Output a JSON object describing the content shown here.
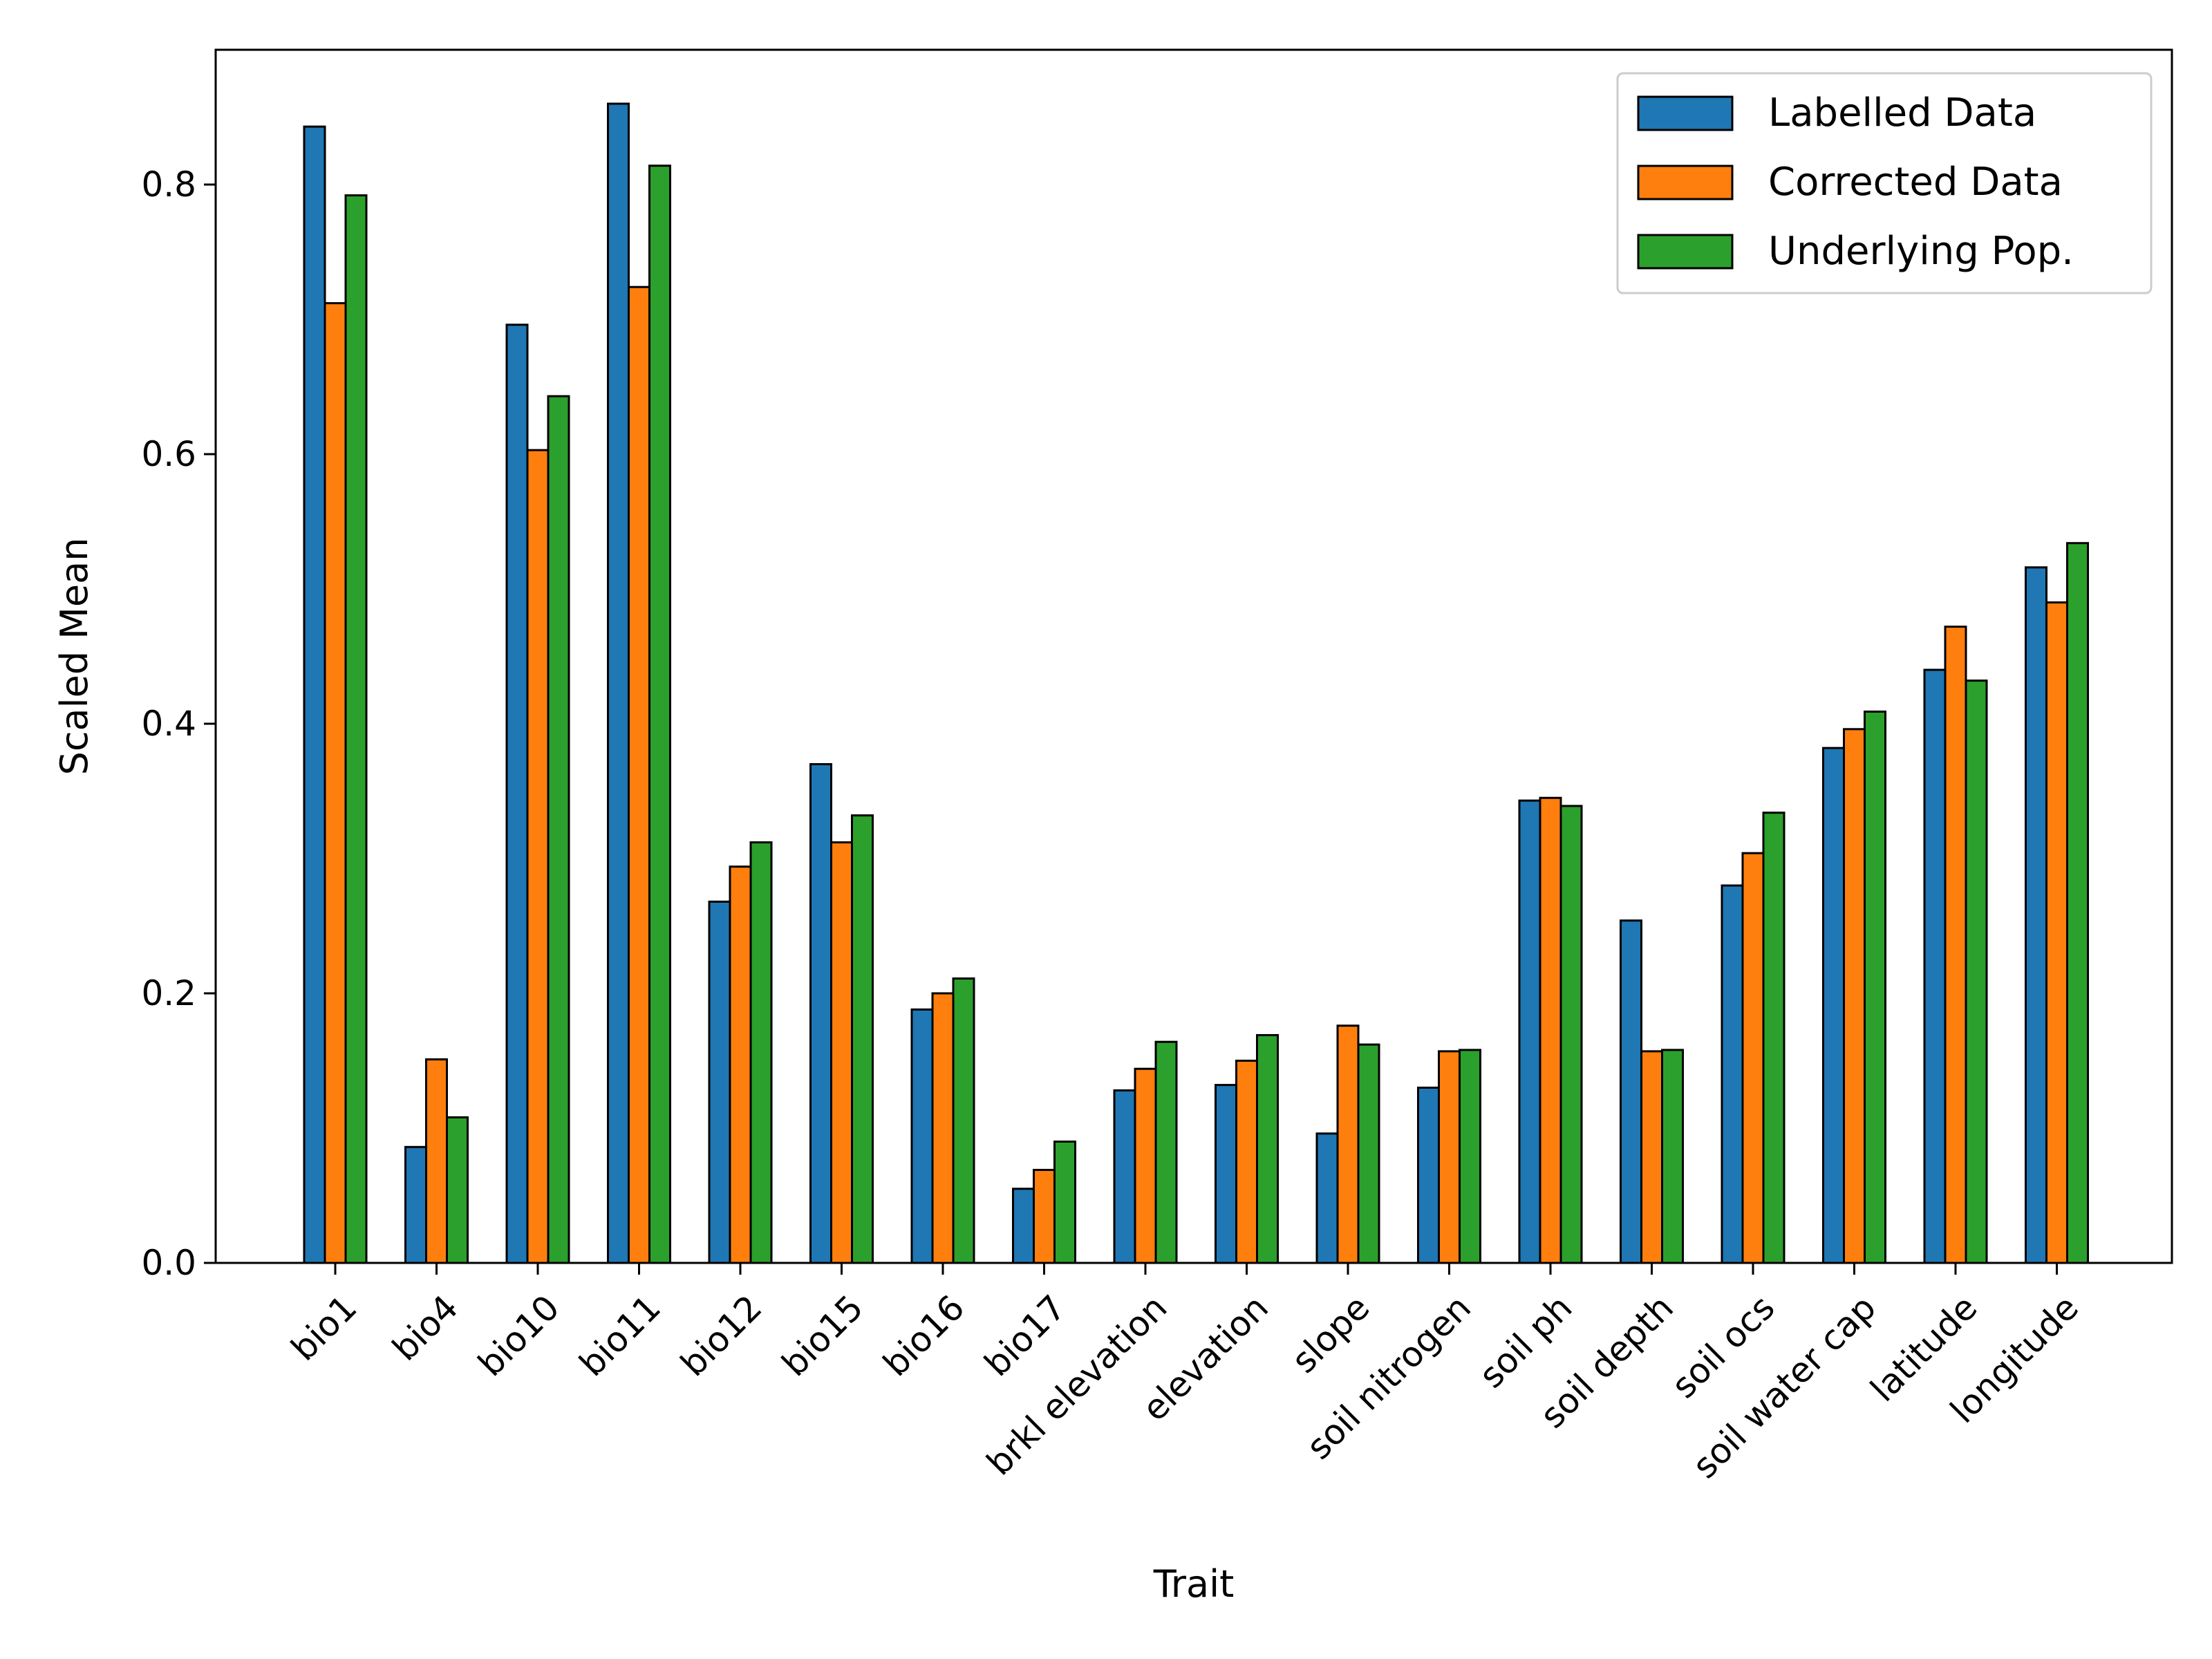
{
  "chart_data": {
    "type": "bar",
    "xlabel": "Trait",
    "ylabel": "Scaled Mean",
    "ylim": [
      0,
      0.9
    ],
    "yticks": [
      "0.0",
      "0.2",
      "0.4",
      "0.6",
      "0.8"
    ],
    "legend_position": "top-right",
    "grid": false,
    "categories": [
      "bio1",
      "bio4",
      "bio10",
      "bio11",
      "bio12",
      "bio15",
      "bio16",
      "bio17",
      "brkl elevation",
      "elevation",
      "slope",
      "soil nitrogen",
      "soil ph",
      "soil depth",
      "soil ocs",
      "soil water cap",
      "latitude",
      "longitude"
    ],
    "series": [
      {
        "name": "Labelled Data",
        "color": "#1f77b4",
        "values": [
          0.843,
          0.086,
          0.696,
          0.86,
          0.268,
          0.37,
          0.188,
          0.055,
          0.128,
          0.132,
          0.096,
          0.13,
          0.343,
          0.254,
          0.28,
          0.382,
          0.44,
          0.516
        ]
      },
      {
        "name": "Corrected Data",
        "color": "#ff7f0e",
        "values": [
          0.712,
          0.151,
          0.603,
          0.724,
          0.294,
          0.312,
          0.2,
          0.069,
          0.144,
          0.15,
          0.176,
          0.157,
          0.345,
          0.157,
          0.304,
          0.396,
          0.472,
          0.49
        ]
      },
      {
        "name": "Underlying Pop.",
        "color": "#2ca02c",
        "values": [
          0.792,
          0.108,
          0.643,
          0.814,
          0.312,
          0.332,
          0.211,
          0.09,
          0.164,
          0.169,
          0.162,
          0.158,
          0.339,
          0.158,
          0.334,
          0.409,
          0.432,
          0.534
        ]
      }
    ]
  }
}
